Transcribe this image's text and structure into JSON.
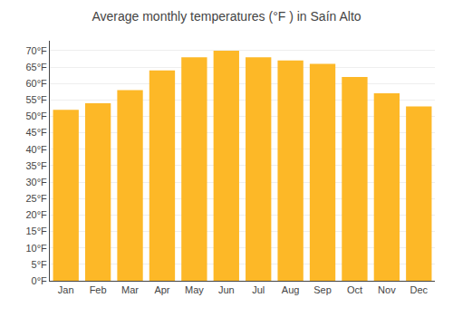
{
  "chart_data": {
    "type": "bar",
    "title": "Average monthly temperatures (°F ) in Saín Alto",
    "categories": [
      "Jan",
      "Feb",
      "Mar",
      "Apr",
      "May",
      "Jun",
      "Jul",
      "Aug",
      "Sep",
      "Oct",
      "Nov",
      "Dec"
    ],
    "values": [
      52,
      54,
      58,
      64,
      68,
      70,
      68,
      67,
      66,
      62,
      57,
      53
    ],
    "color": "#FDB827",
    "ylim": [
      0,
      73
    ],
    "yticks": [
      {
        "value": 0,
        "label": "0°F"
      },
      {
        "value": 5,
        "label": "5°F"
      },
      {
        "value": 10,
        "label": "10°F"
      },
      {
        "value": 15,
        "label": "15°F"
      },
      {
        "value": 20,
        "label": "20°F"
      },
      {
        "value": 25,
        "label": "25°F"
      },
      {
        "value": 30,
        "label": "30°F"
      },
      {
        "value": 35,
        "label": "35°F"
      },
      {
        "value": 40,
        "label": "40°F"
      },
      {
        "value": 45,
        "label": "45°F"
      },
      {
        "value": 50,
        "label": "50°F"
      },
      {
        "value": 55,
        "label": "55°F"
      },
      {
        "value": 60,
        "label": "60°F"
      },
      {
        "value": 65,
        "label": "65°F"
      },
      {
        "value": 70,
        "label": "70°F"
      }
    ],
    "grid": true
  }
}
